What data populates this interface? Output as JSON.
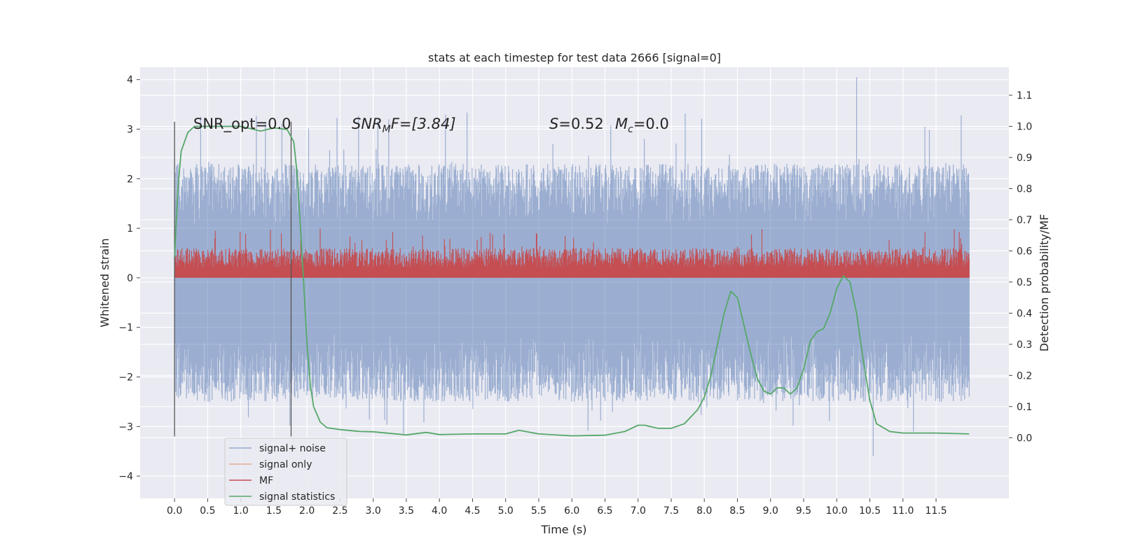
{
  "chart_data": {
    "type": "line",
    "title": "stats at each timestep for test data 2666 [signal=0]",
    "xlabel": "Time (s)",
    "ylabel": "Whitened strain",
    "y2label": "Detection probability/MF",
    "xlim": [
      -0.52,
      12.6
    ],
    "ylim": [
      -4.45,
      4.25
    ],
    "y2lim": [
      -0.195,
      1.19
    ],
    "xticks": [
      "0.0",
      "0.5",
      "1.0",
      "1.5",
      "2.0",
      "2.5",
      "3.0",
      "3.5",
      "4.0",
      "4.5",
      "5.0",
      "5.5",
      "6.0",
      "6.5",
      "7.0",
      "7.5",
      "8.0",
      "8.5",
      "9.0",
      "9.5",
      "10.0",
      "10.5",
      "11.0",
      "11.5"
    ],
    "yticks": [
      "4",
      "3",
      "2",
      "1",
      "0",
      "−1",
      "−2",
      "−3",
      "−4"
    ],
    "y2ticks": [
      "1.1",
      "1.0",
      "0.9",
      "0.8",
      "0.7",
      "0.6",
      "0.5",
      "0.4",
      "0.3",
      "0.2",
      "0.1",
      "0.0"
    ],
    "grid": true,
    "legend_position": "lower-left",
    "legend": [
      {
        "label": "signal+ noise",
        "color": "#4c72b0",
        "opacity": 0.5
      },
      {
        "label": "signal only",
        "color": "#dd8452",
        "opacity": 0.6
      },
      {
        "label": "MF",
        "color": "#c44e52",
        "opacity": 1
      },
      {
        "label": "signal statistics",
        "color": "#55a868",
        "opacity": 1
      }
    ],
    "annotations": {
      "snr_opt": "SNR_opt=0.0",
      "snr_mf_lead": "SNR",
      "snr_mf_sub": "M",
      "snr_mf_tail": "F=[3.84]",
      "s_lead": "S",
      "s_value": "=0.52",
      "mc_lead": "M",
      "mc_sub": "c",
      "mc_value": "=0.0"
    },
    "vertical_lines_x": [
      0.0,
      1.76
    ],
    "signal_noise": {
      "x_range": [
        0.0,
        12.0
      ],
      "envelope_upper": 2.3,
      "envelope_lower": -2.5,
      "peak_max": 4.05,
      "peak_min": -3.6
    },
    "mf": {
      "x_range": [
        0.0,
        12.0
      ],
      "baseline": 0.0,
      "typical_top": 0.6,
      "peak_max": 1.0
    },
    "signal_statistics": {
      "x": [
        0.0,
        0.05,
        0.1,
        0.2,
        0.3,
        0.5,
        1.0,
        1.2,
        1.3,
        1.5,
        1.7,
        1.8,
        1.85,
        1.9,
        1.95,
        2.0,
        2.05,
        2.1,
        2.2,
        2.3,
        2.5,
        2.8,
        3.0,
        3.5,
        3.8,
        4.0,
        4.5,
        5.0,
        5.2,
        5.5,
        6.0,
        6.5,
        6.8,
        7.0,
        7.1,
        7.3,
        7.5,
        7.7,
        7.9,
        8.0,
        8.1,
        8.2,
        8.3,
        8.4,
        8.5,
        8.6,
        8.7,
        8.8,
        8.9,
        9.0,
        9.1,
        9.2,
        9.3,
        9.4,
        9.5,
        9.6,
        9.7,
        9.8,
        9.9,
        10.0,
        10.1,
        10.2,
        10.3,
        10.4,
        10.5,
        10.6,
        10.8,
        11.0,
        11.5,
        12.0
      ],
      "y": [
        0.58,
        0.8,
        0.92,
        0.98,
        1.0,
        1.0,
        1.0,
        0.99,
        0.985,
        0.995,
        0.99,
        0.95,
        0.85,
        0.68,
        0.5,
        0.3,
        0.17,
        0.1,
        0.05,
        0.032,
        0.026,
        0.02,
        0.019,
        0.009,
        0.017,
        0.01,
        0.012,
        0.012,
        0.024,
        0.012,
        0.006,
        0.008,
        0.02,
        0.04,
        0.04,
        0.03,
        0.03,
        0.045,
        0.09,
        0.13,
        0.2,
        0.3,
        0.4,
        0.47,
        0.45,
        0.36,
        0.27,
        0.19,
        0.15,
        0.14,
        0.16,
        0.16,
        0.14,
        0.16,
        0.22,
        0.31,
        0.34,
        0.35,
        0.4,
        0.48,
        0.52,
        0.5,
        0.4,
        0.25,
        0.12,
        0.045,
        0.02,
        0.015,
        0.015,
        0.012
      ]
    }
  }
}
